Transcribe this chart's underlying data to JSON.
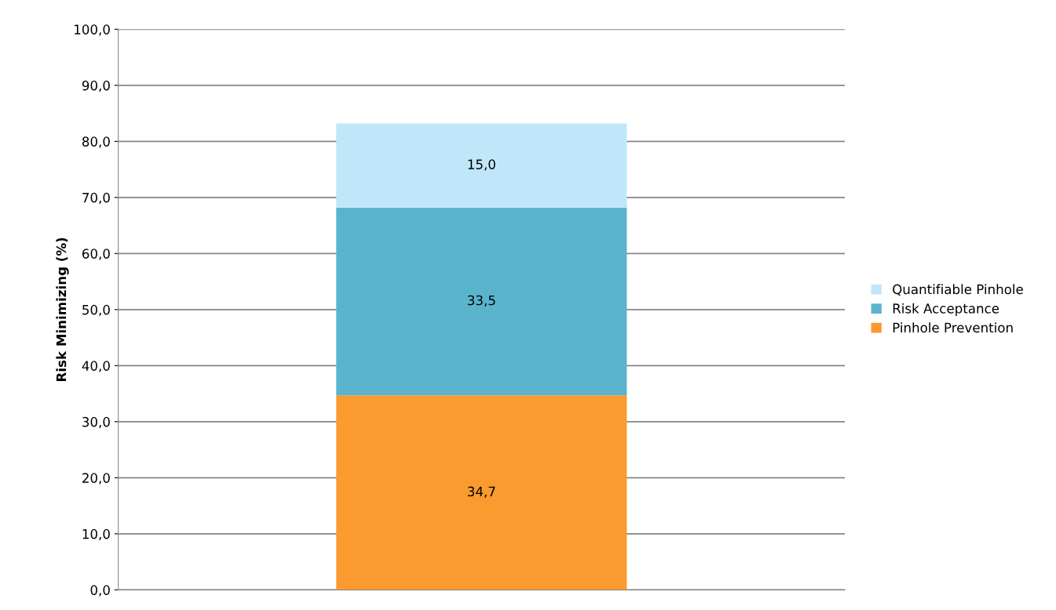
{
  "chart_data": {
    "type": "bar",
    "stacked": true,
    "ylabel": "Risk Minimizing (%)",
    "categories": [
      null
    ],
    "series": [
      {
        "name": "Pinhole Prevention",
        "color": "#fb9a2f",
        "values": [
          34.7
        ],
        "value_labels": [
          "34,7"
        ]
      },
      {
        "name": "Risk Acceptance",
        "color": "#5ab4cd",
        "values": [
          33.5
        ],
        "value_labels": [
          "33,5"
        ]
      },
      {
        "name": "Quantifiable Pinhole",
        "color": "#c0e6fa",
        "values": [
          15.0
        ],
        "value_labels": [
          "15,0"
        ]
      }
    ],
    "ylim": [
      0,
      100
    ],
    "yticks": [
      {
        "value": 0,
        "label": "0,0"
      },
      {
        "value": 10,
        "label": "10,0"
      },
      {
        "value": 20,
        "label": "20,0"
      },
      {
        "value": 30,
        "label": "30,0"
      },
      {
        "value": 40,
        "label": "40,0"
      },
      {
        "value": 50,
        "label": "50,0"
      },
      {
        "value": 60,
        "label": "60,0"
      },
      {
        "value": 70,
        "label": "70,0"
      },
      {
        "value": 80,
        "label": "80,0"
      },
      {
        "value": 90,
        "label": "90,0"
      },
      {
        "value": 100,
        "label": "100,0"
      }
    ],
    "grid": "y",
    "legend": "right",
    "tick_labels": "y"
  }
}
